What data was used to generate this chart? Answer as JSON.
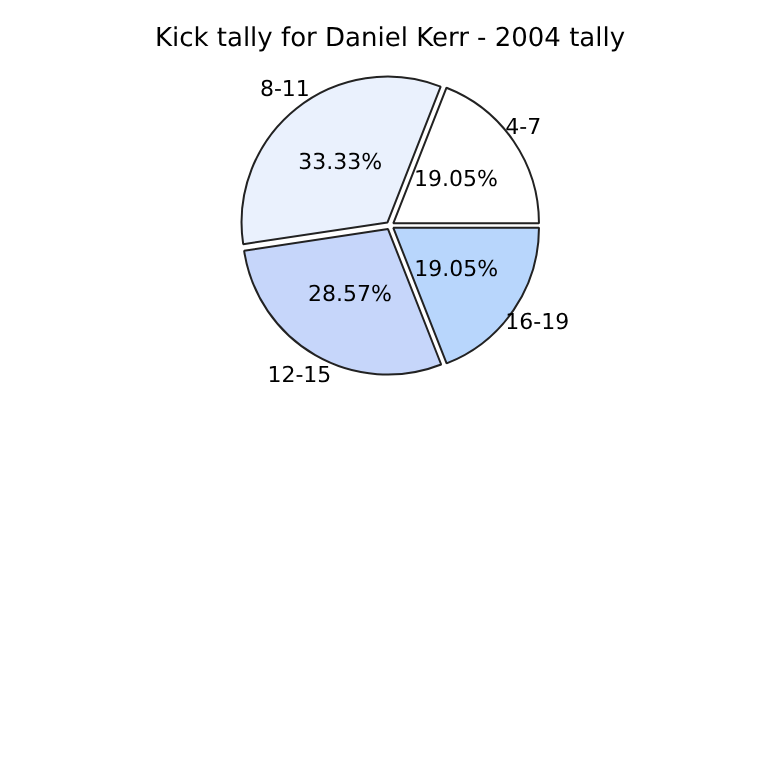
{
  "chart_data": {
    "type": "pie",
    "title": "Kick tally for Daniel Kerr - 2004 tally",
    "categories": [
      "4-7",
      "16-19",
      "12-15",
      "8-11"
    ],
    "values": [
      19.05,
      19.05,
      28.57,
      33.33
    ],
    "value_labels": [
      "19.05%",
      "19.05%",
      "28.57%",
      "33.33%"
    ],
    "colors": [
      "#ffffff",
      "#b8d6fc",
      "#c6d6fa",
      "#eaf1fd"
    ],
    "legend": false
  }
}
